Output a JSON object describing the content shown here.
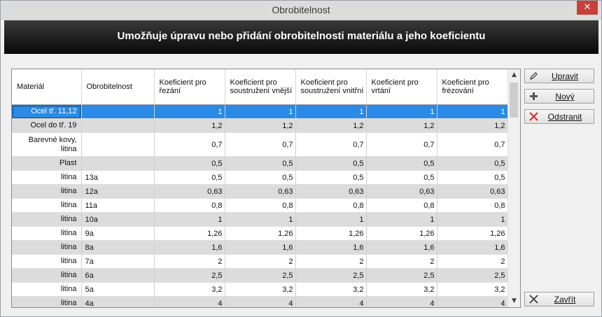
{
  "window": {
    "title": "Obrobitelnost",
    "close_glyph": "✕"
  },
  "banner": {
    "text": "Umožňuje úpravu nebo přidání obrobitelnosti materiálu a jeho koeficientu"
  },
  "buttons": {
    "edit": "Upravit",
    "new": "Nový",
    "delete": "Odstranit",
    "close": "Zavřít"
  },
  "icons": {
    "edit": "pencil-icon",
    "new": "plus-icon",
    "delete": "red-x-icon",
    "close": "x-icon"
  },
  "table": {
    "headers": [
      "Materiál",
      "Obrobitelnost",
      "Koeficient pro řezání",
      "Koeficient pro soustružení vnější",
      "Koeficient pro soustružení vnitřní",
      "Koeficient pro vrtání",
      "Koeficient pro frézování"
    ],
    "rows": [
      {
        "material": "Ocel tř. 11,12",
        "obr": "",
        "k1": "1",
        "k2": "1",
        "k3": "1",
        "k4": "1",
        "k5": "1"
      },
      {
        "material": "Ocel do tř. 19",
        "obr": "",
        "k1": "1,2",
        "k2": "1,2",
        "k3": "1,2",
        "k4": "1,2",
        "k5": "1,2"
      },
      {
        "material": "Barevné kovy, litina",
        "obr": "",
        "k1": "0,7",
        "k2": "0,7",
        "k3": "0,7",
        "k4": "0,7",
        "k5": "0,7"
      },
      {
        "material": "Plast",
        "obr": "",
        "k1": "0,5",
        "k2": "0,5",
        "k3": "0,5",
        "k4": "0,5",
        "k5": "0,5"
      },
      {
        "material": "litina",
        "obr": "13a",
        "k1": "0,5",
        "k2": "0,5",
        "k3": "0,5",
        "k4": "0,5",
        "k5": "0,5"
      },
      {
        "material": "litina",
        "obr": "12a",
        "k1": "0,63",
        "k2": "0,63",
        "k3": "0,63",
        "k4": "0,63",
        "k5": "0,63"
      },
      {
        "material": "litina",
        "obr": "11a",
        "k1": "0,8",
        "k2": "0,8",
        "k3": "0,8",
        "k4": "0,8",
        "k5": "0,8"
      },
      {
        "material": "litina",
        "obr": "10a",
        "k1": "1",
        "k2": "1",
        "k3": "1",
        "k4": "1",
        "k5": "1"
      },
      {
        "material": "litina",
        "obr": "9a",
        "k1": "1,26",
        "k2": "1,26",
        "k3": "1,26",
        "k4": "1,26",
        "k5": "1,26"
      },
      {
        "material": "litina",
        "obr": "8a",
        "k1": "1,6",
        "k2": "1,6",
        "k3": "1,6",
        "k4": "1,6",
        "k5": "1,6"
      },
      {
        "material": "litina",
        "obr": "7a",
        "k1": "2",
        "k2": "2",
        "k3": "2",
        "k4": "2",
        "k5": "2"
      },
      {
        "material": "litina",
        "obr": "6a",
        "k1": "2,5",
        "k2": "2,5",
        "k3": "2,5",
        "k4": "2,5",
        "k5": "2,5"
      },
      {
        "material": "litina",
        "obr": "5a",
        "k1": "3,2",
        "k2": "3,2",
        "k3": "3,2",
        "k4": "3,2",
        "k5": "3,2"
      },
      {
        "material": "litina",
        "obr": "4a",
        "k1": "4",
        "k2": "4",
        "k3": "4",
        "k4": "4",
        "k5": "4"
      }
    ]
  }
}
